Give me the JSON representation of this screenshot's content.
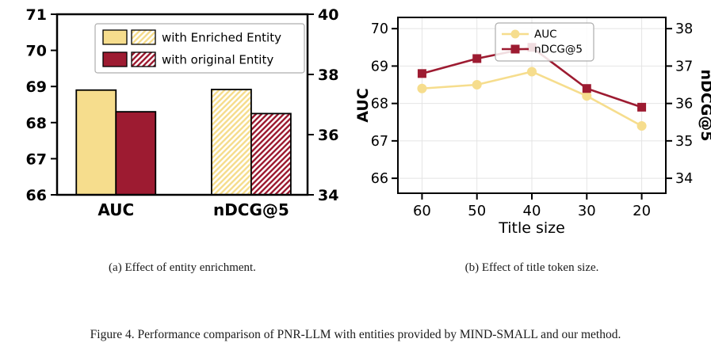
{
  "captions": {
    "a": "(a) Effect of entity enrichment.",
    "b": "(b) Effect of title token size."
  },
  "figure_caption": "Figure 4. Performance comparison of PNR-LLM with entities provided by MIND-SMALL and our method.",
  "colors": {
    "enriched_yellow": "#F6DD8D",
    "original_red": "#9D1B31",
    "axis_black": "#000000",
    "legend_border_gray": "#ADADAD",
    "grid_gray": "#E4E4E4"
  },
  "chart_data": [
    {
      "type": "bar",
      "categories": [
        "AUC",
        "nDCG@5"
      ],
      "left_axis": {
        "ticks": [
          66,
          67,
          68,
          69,
          70,
          71
        ],
        "range": [
          66,
          71
        ],
        "applies_to": "AUC"
      },
      "right_axis": {
        "ticks": [
          34,
          36,
          38,
          40
        ],
        "range": [
          34,
          40
        ],
        "applies_to": "nDCG@5"
      },
      "series": [
        {
          "name": "with Enriched Entity",
          "color": "#F6DD8D",
          "values": [
            68.9,
            37.5
          ],
          "hatch": [
            false,
            true
          ]
        },
        {
          "name": "with original Entity",
          "color": "#9D1B31",
          "values": [
            68.3,
            36.7
          ],
          "hatch": [
            false,
            true
          ]
        }
      ],
      "legend_position": "upper center",
      "grid": false
    },
    {
      "type": "line",
      "xlabel": "Title size",
      "x_ticks": [
        60,
        50,
        40,
        30,
        20
      ],
      "left_axis": {
        "label": "AUC",
        "ticks": [
          66,
          67,
          68,
          69,
          70
        ],
        "range": [
          65.6,
          70.3
        ]
      },
      "right_axis": {
        "label": "nDCG@5",
        "ticks": [
          34,
          35,
          36,
          37,
          38
        ],
        "range": [
          33.6,
          38.3
        ]
      },
      "series": [
        {
          "name": "AUC",
          "axis": "left",
          "marker": "circle",
          "color": "#F6DD8D",
          "values": [
            68.4,
            68.5,
            68.85,
            68.2,
            67.4
          ]
        },
        {
          "name": "nDCG@5",
          "axis": "right",
          "marker": "square",
          "color": "#9D1B31",
          "values": [
            36.8,
            37.2,
            37.5,
            36.4,
            35.9
          ]
        }
      ],
      "legend_position": "upper right",
      "grid": true
    }
  ]
}
